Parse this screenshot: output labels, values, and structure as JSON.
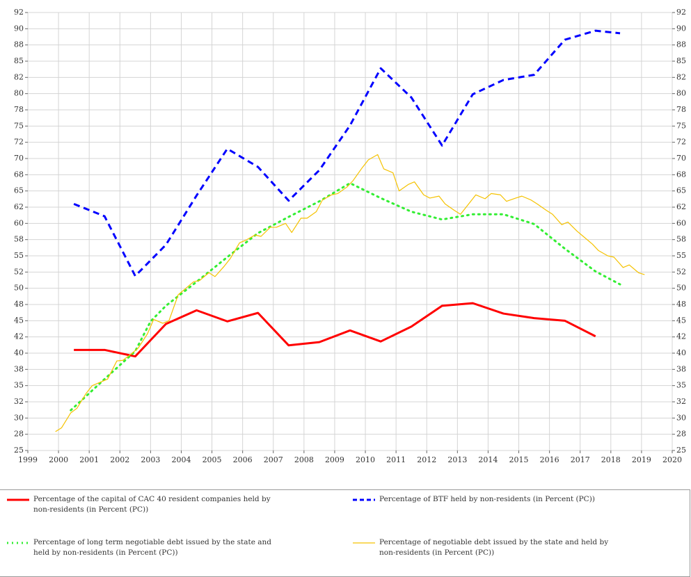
{
  "chart_data": {
    "type": "line",
    "xlim": [
      1999,
      2020
    ],
    "xticks": [
      1999,
      2000,
      2001,
      2002,
      2003,
      2004,
      2005,
      2006,
      2007,
      2008,
      2009,
      2010,
      2011,
      2012,
      2013,
      2014,
      2015,
      2016,
      2017,
      2018,
      2019,
      2020
    ],
    "ylim": [
      25,
      92.5
    ],
    "yticks": [
      25,
      {
        "value": 27.5,
        "label": "28"
      },
      30,
      {
        "value": 32.5,
        "label": "32"
      },
      35,
      {
        "value": 37.5,
        "label": "38"
      },
      40,
      {
        "value": 42.5,
        "label": "42"
      },
      45,
      {
        "value": 47.5,
        "label": "48"
      },
      50,
      {
        "value": 52.5,
        "label": "52"
      },
      55,
      {
        "value": 57.5,
        "label": "58"
      },
      60,
      {
        "value": 62.5,
        "label": "62"
      },
      65,
      {
        "value": 67.5,
        "label": "68"
      },
      70,
      {
        "value": 72.5,
        "label": "72"
      },
      75,
      {
        "value": 77.5,
        "label": "78"
      },
      80,
      {
        "value": 82.5,
        "label": "82"
      },
      85,
      {
        "value": 87.5,
        "label": "88"
      },
      90,
      {
        "value": 92.5,
        "label": "92"
      }
    ],
    "grid": true,
    "mirror_y_axis": true,
    "legend_position": "bottom",
    "series": [
      {
        "name": "Percentage of the capital of CAC 40 resident companies held by non-residents (in Percent (PC))",
        "color": "#ff0000",
        "line_style": "solid",
        "line_width": 3,
        "x": [
          2000.5,
          2001.5,
          2002.5,
          2003.5,
          2004.5,
          2005.5,
          2006.5,
          2007.5,
          2008.5,
          2009.5,
          2010.5,
          2011.5,
          2012.5,
          2013.5,
          2014.5,
          2015.5,
          2016.5,
          2017.5
        ],
        "values": [
          40.5,
          40.5,
          39.5,
          44.5,
          46.6,
          44.9,
          46.2,
          41.2,
          41.7,
          43.5,
          41.8,
          44.1,
          47.3,
          47.7,
          46.1,
          45.4,
          45.0,
          42.6
        ]
      },
      {
        "name": "Percentage of BTF held by non-residents (in Percent (PC))",
        "color": "#0000ff",
        "line_style": "dashed",
        "line_width": 3,
        "x": [
          2000.5,
          2001.5,
          2002.5,
          2003.5,
          2004.5,
          2005.5,
          2006.5,
          2007.5,
          2008.5,
          2009.5,
          2010.5,
          2011.5,
          2012.5,
          2013.5,
          2014.5,
          2015.5,
          2016.5,
          2017.5,
          2018.3
        ],
        "values": [
          63.0,
          61.1,
          51.9,
          56.7,
          64.3,
          71.5,
          68.7,
          63.5,
          68.2,
          75.1,
          83.9,
          79.4,
          72.0,
          79.9,
          82.1,
          82.9,
          88.3,
          89.7,
          89.3
        ]
      },
      {
        "name": "Percentage of long term negotiable debt issued by the state and held by non-residents (in Percent (PC))",
        "color": "#33ee33",
        "line_style": "dotted",
        "line_width": 3,
        "x": [
          2000.4,
          2001.5,
          2002.5,
          2003.0,
          2003.5,
          2004.5,
          2005.5,
          2006.5,
          2007.5,
          2008.5,
          2009.5,
          2010.5,
          2011.5,
          2012.5,
          2013.5,
          2014.5,
          2015.5,
          2016.5,
          2017.5,
          2018.3
        ],
        "values": [
          31.2,
          36.0,
          40.3,
          44.9,
          47.3,
          51.0,
          54.8,
          58.5,
          61.0,
          63.4,
          66.2,
          63.9,
          61.8,
          60.6,
          61.4,
          61.4,
          59.9,
          56.1,
          52.6,
          50.6
        ]
      },
      {
        "name": "Percentage of negotiable debt issued by the state and held by non-residents (in Percent (PC))",
        "color": "#f5c200",
        "line_style": "solid",
        "line_width": 1.2,
        "x": [
          1999.9,
          2000.1,
          2000.4,
          2000.6,
          2000.9,
          2001.1,
          2001.4,
          2001.6,
          2001.9,
          2002.1,
          2002.4,
          2002.6,
          2002.9,
          2003.1,
          2003.4,
          2003.6,
          2003.9,
          2004.1,
          2004.4,
          2004.6,
          2004.9,
          2005.1,
          2005.4,
          2005.6,
          2005.9,
          2006.1,
          2006.4,
          2006.6,
          2006.9,
          2007.1,
          2007.4,
          2007.6,
          2007.9,
          2008.1,
          2008.4,
          2008.6,
          2008.9,
          2009.1,
          2009.4,
          2009.6,
          2009.9,
          2010.1,
          2010.4,
          2010.6,
          2010.9,
          2011.1,
          2011.4,
          2011.6,
          2011.9,
          2012.1,
          2012.4,
          2012.6,
          2012.9,
          2013.1,
          2013.4,
          2013.6,
          2013.9,
          2014.1,
          2014.4,
          2014.6,
          2014.9,
          2015.1,
          2015.4,
          2015.6,
          2015.9,
          2016.1,
          2016.4,
          2016.6,
          2016.9,
          2017.1,
          2017.4,
          2017.6,
          2017.9,
          2018.1,
          2018.4,
          2018.6,
          2018.9,
          2019.1
        ],
        "values": [
          27.9,
          28.5,
          30.8,
          31.5,
          33.8,
          35.0,
          35.6,
          36.0,
          38.8,
          38.9,
          40.0,
          40.8,
          43.0,
          45.2,
          44.6,
          45.0,
          49.0,
          49.8,
          51.0,
          51.2,
          52.4,
          51.8,
          53.4,
          54.6,
          57.0,
          57.4,
          58.2,
          58.0,
          59.4,
          59.4,
          60.0,
          58.6,
          60.8,
          60.8,
          61.8,
          63.6,
          64.4,
          64.6,
          65.6,
          66.6,
          68.6,
          69.8,
          70.6,
          68.4,
          67.8,
          65.0,
          66.0,
          66.4,
          64.4,
          63.9,
          64.2,
          63.0,
          62.0,
          61.4,
          63.2,
          64.4,
          63.8,
          64.6,
          64.4,
          63.4,
          63.9,
          64.2,
          63.6,
          63.0,
          62.0,
          61.4,
          59.8,
          60.2,
          58.8,
          58.0,
          56.8,
          55.8,
          55.0,
          54.8,
          53.2,
          53.6,
          52.4,
          52.1
        ]
      }
    ]
  }
}
